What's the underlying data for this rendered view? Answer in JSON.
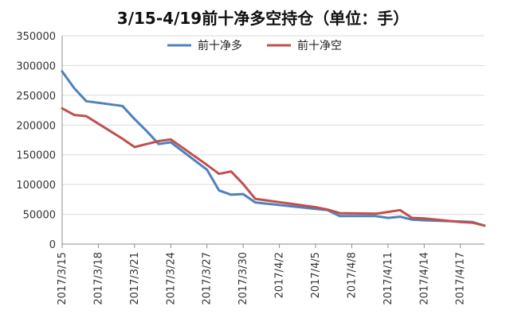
{
  "chart_data": {
    "type": "line",
    "title": "3/15-4/19前十净多空持仓（单位：手）",
    "xlabel": "",
    "ylabel": "",
    "ylim": [
      0,
      350000
    ],
    "y_ticks": [
      0,
      50000,
      100000,
      150000,
      200000,
      250000,
      300000,
      350000
    ],
    "y_tick_labels": [
      "0",
      "50000",
      "100000",
      "150000",
      "200000",
      "250000",
      "300000",
      "350000"
    ],
    "x_tick_labels": [
      "2017/3/15",
      "2017/3/18",
      "2017/3/21",
      "2017/3/24",
      "2017/3/27",
      "2017/3/30",
      "2017/4/2",
      "2017/4/5",
      "2017/4/8",
      "2017/4/11",
      "2017/4/14",
      "2017/4/17"
    ],
    "xlim": [
      "2017/3/15",
      "2017/4/19"
    ],
    "grid": "horizontal",
    "legend_position": "top-center",
    "series": [
      {
        "name": "前十净多",
        "color": "#4f81bd",
        "points": [
          [
            "2017/3/15",
            290000
          ],
          [
            "2017/3/16",
            262000
          ],
          [
            "2017/3/17",
            240000
          ],
          [
            "2017/3/20",
            232000
          ],
          [
            "2017/3/21",
            210000
          ],
          [
            "2017/3/22",
            190000
          ],
          [
            "2017/3/23",
            168000
          ],
          [
            "2017/3/24",
            171000
          ],
          [
            "2017/3/27",
            125000
          ],
          [
            "2017/3/28",
            90000
          ],
          [
            "2017/3/29",
            83000
          ],
          [
            "2017/3/30",
            84000
          ],
          [
            "2017/3/31",
            70000
          ],
          [
            "2017/4/5",
            59000
          ],
          [
            "2017/4/6",
            57000
          ],
          [
            "2017/4/7",
            47000
          ],
          [
            "2017/4/10",
            47000
          ],
          [
            "2017/4/11",
            44000
          ],
          [
            "2017/4/12",
            46000
          ],
          [
            "2017/4/13",
            41000
          ],
          [
            "2017/4/14",
            40000
          ],
          [
            "2017/4/17",
            38000
          ],
          [
            "2017/4/18",
            37000
          ],
          [
            "2017/4/19",
            31000
          ]
        ]
      },
      {
        "name": "前十净空",
        "color": "#c0504d",
        "points": [
          [
            "2017/3/15",
            228000
          ],
          [
            "2017/3/16",
            217000
          ],
          [
            "2017/3/17",
            215000
          ],
          [
            "2017/3/20",
            177000
          ],
          [
            "2017/3/21",
            163000
          ],
          [
            "2017/3/22",
            168000
          ],
          [
            "2017/3/23",
            173000
          ],
          [
            "2017/3/24",
            176000
          ],
          [
            "2017/3/27",
            133000
          ],
          [
            "2017/3/28",
            118000
          ],
          [
            "2017/3/29",
            122000
          ],
          [
            "2017/3/30",
            101000
          ],
          [
            "2017/3/31",
            76000
          ],
          [
            "2017/4/5",
            62000
          ],
          [
            "2017/4/6",
            58000
          ],
          [
            "2017/4/7",
            52000
          ],
          [
            "2017/4/10",
            51000
          ],
          [
            "2017/4/11",
            54000
          ],
          [
            "2017/4/12",
            57000
          ],
          [
            "2017/4/13",
            44000
          ],
          [
            "2017/4/14",
            43000
          ],
          [
            "2017/4/17",
            37000
          ],
          [
            "2017/4/18",
            36000
          ],
          [
            "2017/4/19",
            31000
          ]
        ]
      }
    ]
  }
}
